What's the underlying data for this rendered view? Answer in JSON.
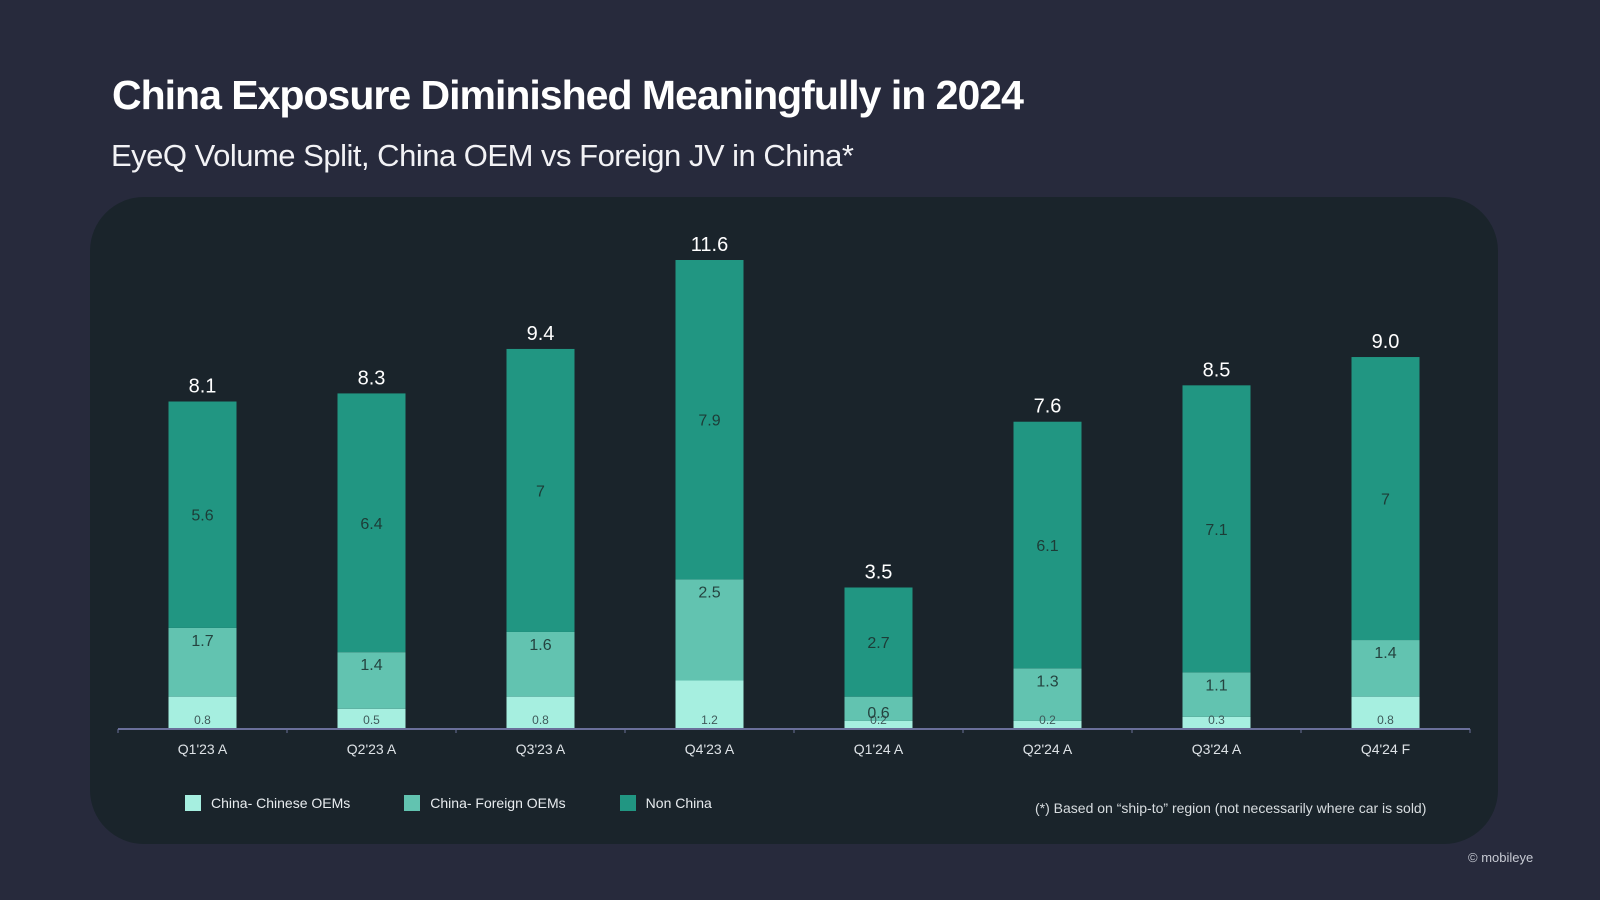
{
  "slide": {
    "title": "China Exposure Diminished Meaningfully in 2024",
    "subtitle": "EyeQ Volume Split, China OEM vs Foreign JV in China*",
    "footnote": "(*) Based on “ship-to” region (not necessarily where car is sold)",
    "copyright": "© mobileye"
  },
  "colors": {
    "background": "#272a3c",
    "panel": "#1a242b",
    "china_chinese_oems": "#a6efe0",
    "china_foreign_oems": "#62c3b0",
    "non_china": "#219682",
    "axis": "#6a6f9a"
  },
  "chart_data": {
    "type": "bar",
    "stacked": true,
    "title": "EyeQ Volume Split, China OEM vs Foreign JV in China*",
    "xlabel": "",
    "ylabel": "",
    "categories": [
      "Q1'23 A",
      "Q2'23 A",
      "Q3'23 A",
      "Q4'23 A",
      "Q1'24 A",
      "Q2'24 A",
      "Q3'24 A",
      "Q4'24 F"
    ],
    "series": [
      {
        "name": "China- Chinese OEMs",
        "color": "#a6efe0",
        "values": [
          0.8,
          0.5,
          0.8,
          1.2,
          0.2,
          0.2,
          0.3,
          0.8
        ],
        "labels": [
          "0.8",
          "0.5",
          "0.8",
          "1.2",
          "0.2",
          "0.2",
          "0.3",
          "0.8"
        ]
      },
      {
        "name": "China- Foreign OEMs",
        "color": "#62c3b0",
        "values": [
          1.7,
          1.4,
          1.6,
          2.5,
          0.6,
          1.3,
          1.1,
          1.4
        ],
        "labels": [
          "1.7",
          "1.4",
          "1.6",
          "2.5",
          "0.6",
          "1.3",
          "1.1",
          "1.4"
        ]
      },
      {
        "name": "Non China",
        "color": "#219682",
        "values": [
          5.6,
          6.4,
          7.0,
          7.9,
          2.7,
          6.1,
          7.1,
          7.0
        ],
        "labels": [
          "5.6",
          "6.4",
          "7",
          "7.9",
          "2.7",
          "6.1",
          "7.1",
          "7"
        ]
      }
    ],
    "totals": [
      8.1,
      8.3,
      9.4,
      11.6,
      3.5,
      7.6,
      8.5,
      9.0
    ],
    "total_labels": [
      "8.1",
      "8.3",
      "9.4",
      "11.6",
      "3.5",
      "7.6",
      "8.5",
      "9.0"
    ],
    "ylim": [
      0,
      11.6
    ],
    "grid": false,
    "legend_position": "bottom-left"
  }
}
